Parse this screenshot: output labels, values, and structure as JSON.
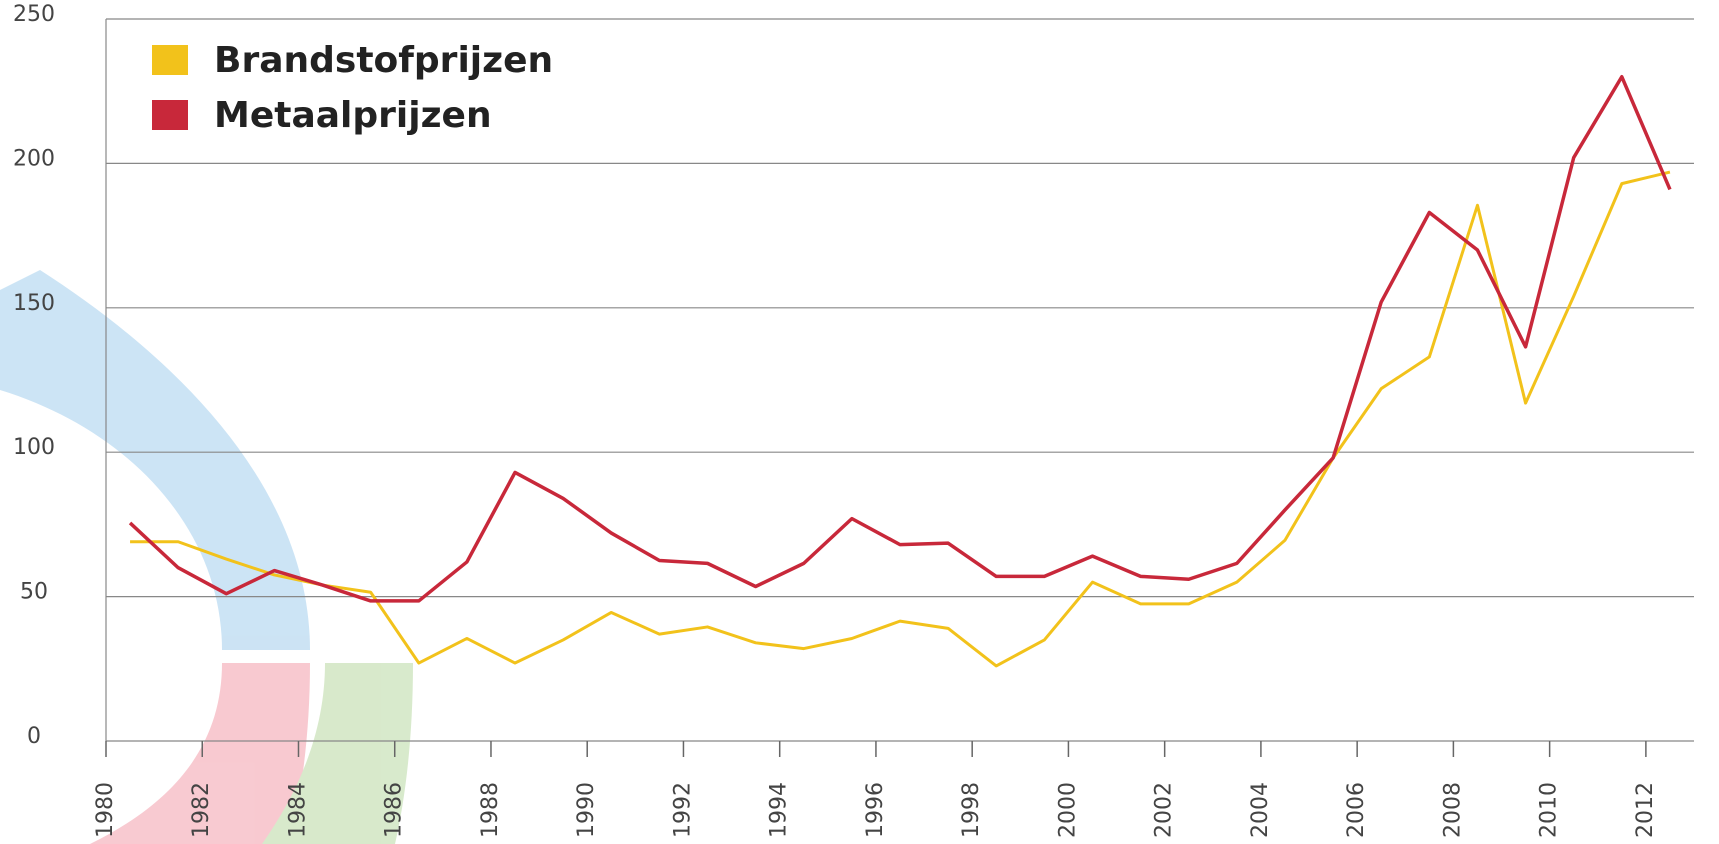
{
  "chart_data": {
    "type": "line",
    "x": [
      1980.5,
      1981.5,
      1982.5,
      1983.5,
      1984.5,
      1985.5,
      1986.5,
      1987.5,
      1988.5,
      1989.5,
      1990.5,
      1991.5,
      1992.5,
      1993.5,
      1994.5,
      1995.5,
      1996.5,
      1997.5,
      1998.5,
      1999.5,
      2000.5,
      2001.5,
      2002.5,
      2003.5,
      2004.5,
      2005.5,
      2006.5,
      2007.5,
      2008.5,
      2009.5,
      2010.5,
      2011.5,
      2012.5
    ],
    "series": [
      {
        "name": "Brandstofprijzen",
        "color": "#f2c21b",
        "values": [
          69,
          69,
          63,
          57.5,
          54,
          51.5,
          27,
          35.5,
          27,
          35,
          44.5,
          37,
          39.5,
          34,
          32,
          35.5,
          41.5,
          39,
          26,
          35,
          55,
          47.5,
          47.5,
          55,
          69.5,
          98,
          122,
          133,
          185.5,
          117,
          154,
          193,
          197
        ]
      },
      {
        "name": "Metaalprijzen",
        "color": "#c8283a",
        "values": [
          75.5,
          60,
          51,
          59,
          54,
          48.5,
          48.5,
          62,
          93,
          84,
          72,
          62.5,
          61.5,
          53.5,
          61.5,
          77,
          68,
          68.5,
          57,
          57,
          64,
          57,
          56,
          61.5,
          80,
          98,
          152,
          183,
          170,
          136.5,
          202,
          230,
          191
        ]
      }
    ],
    "xlim": [
      1980,
      2013
    ],
    "xticks": [
      1980,
      1982,
      1984,
      1986,
      1988,
      1990,
      1992,
      1994,
      1996,
      1998,
      2000,
      2002,
      2004,
      2006,
      2008,
      2010,
      2012
    ],
    "ylim": [
      0,
      250
    ],
    "yticks": [
      0,
      50,
      100,
      150,
      200,
      250
    ],
    "grid": true,
    "legend": "upper-left"
  }
}
